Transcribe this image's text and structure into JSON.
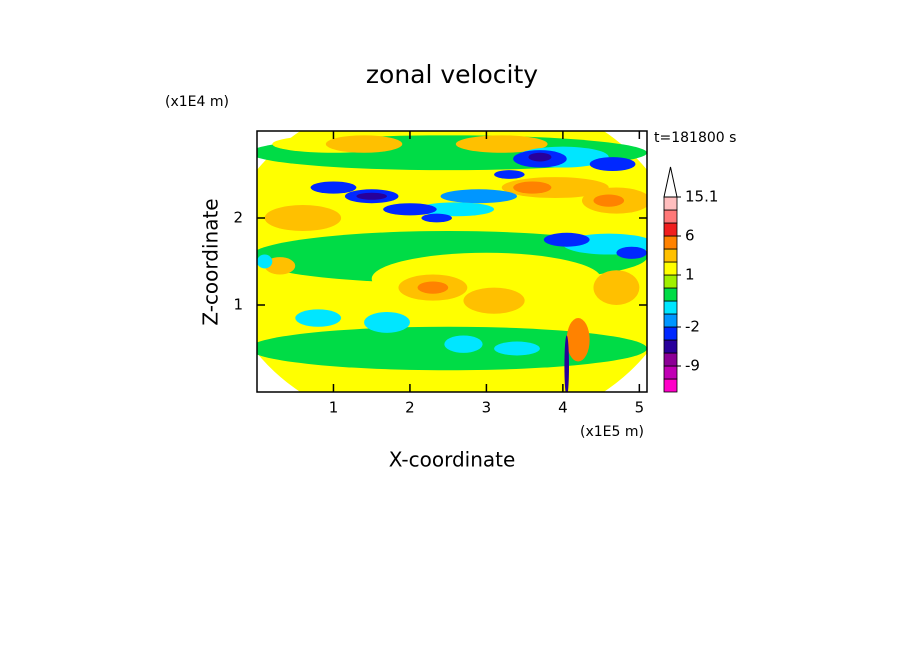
{
  "chart_data": {
    "type": "contour",
    "title": "zonal velocity",
    "x_label": "X-coordinate",
    "y_label": "Z-coordinate",
    "x_unit": "(x1E5 m)",
    "y_unit": "(x1E4 m)",
    "time_label": "t=181800 s",
    "xlim": [
      0,
      5.1
    ],
    "ylim": [
      0,
      3
    ],
    "xticks": [
      1,
      2,
      3,
      4,
      5
    ],
    "yticks": [
      1,
      2
    ],
    "levels": [
      -12,
      -9,
      -6,
      -4,
      -2,
      -1,
      0,
      0.5,
      1,
      2,
      3,
      6,
      9,
      12,
      15.1
    ],
    "colors": [
      "#ff00c8",
      "#c000b4",
      "#8c0096",
      "#28009b",
      "#0028ff",
      "#0096ff",
      "#00e6ff",
      "#00dc46",
      "#a0f000",
      "#ffff00",
      "#ffc000",
      "#ff8200",
      "#f01e1e",
      "#ff7878",
      "#ffbebe",
      "#ffffff"
    ],
    "colorbar_ticks": [
      15.1,
      6,
      1,
      -2,
      -9
    ],
    "field": [
      {
        "x": 2.55,
        "z": 1.5,
        "rx": 3,
        "rz": 2,
        "value": 1.5
      },
      {
        "x": 2.5,
        "z": 2.75,
        "rx": 2.6,
        "rz": 0.2,
        "value": 0.3
      },
      {
        "x": 2.5,
        "z": 1.55,
        "rx": 2.6,
        "rz": 0.3,
        "value": 0.3
      },
      {
        "x": 2.5,
        "z": 0.5,
        "rx": 2.6,
        "rz": 0.25,
        "value": 0.3
      },
      {
        "x": 1.0,
        "z": 2.85,
        "rx": 0.8,
        "rz": 0.1,
        "value": 1.5
      },
      {
        "x": 3.0,
        "z": 1.3,
        "rx": 1.5,
        "rz": 0.3,
        "value": 1.5
      },
      {
        "x": 0.6,
        "z": 2.0,
        "rx": 0.5,
        "rz": 0.15,
        "value": 2.5
      },
      {
        "x": 1.4,
        "z": 2.85,
        "rx": 0.5,
        "rz": 0.1,
        "value": 2.5
      },
      {
        "x": 3.2,
        "z": 2.85,
        "rx": 0.6,
        "rz": 0.1,
        "value": 2.5
      },
      {
        "x": 3.9,
        "z": 2.35,
        "rx": 0.7,
        "rz": 0.12,
        "value": 2.5
      },
      {
        "x": 4.7,
        "z": 2.2,
        "rx": 0.45,
        "rz": 0.15,
        "value": 2.5
      },
      {
        "x": 2.3,
        "z": 1.2,
        "rx": 0.45,
        "rz": 0.15,
        "value": 2.5
      },
      {
        "x": 3.1,
        "z": 1.05,
        "rx": 0.4,
        "rz": 0.15,
        "value": 2.5
      },
      {
        "x": 4.7,
        "z": 1.2,
        "rx": 0.3,
        "rz": 0.2,
        "value": 2.5
      },
      {
        "x": 0.3,
        "z": 1.45,
        "rx": 0.2,
        "rz": 0.1,
        "value": 2.5
      },
      {
        "x": 3.6,
        "z": 2.35,
        "rx": 0.25,
        "rz": 0.07,
        "value": 4
      },
      {
        "x": 4.6,
        "z": 2.2,
        "rx": 0.2,
        "rz": 0.07,
        "value": 4
      },
      {
        "x": 2.3,
        "z": 1.2,
        "rx": 0.2,
        "rz": 0.07,
        "value": 4
      },
      {
        "x": 4.2,
        "z": 0.6,
        "rx": 0.15,
        "rz": 0.25,
        "value": 4
      },
      {
        "x": 0.8,
        "z": 0.85,
        "rx": 0.3,
        "rz": 0.1,
        "value": -0.5
      },
      {
        "x": 1.7,
        "z": 0.8,
        "rx": 0.3,
        "rz": 0.12,
        "value": -0.5
      },
      {
        "x": 2.7,
        "z": 0.55,
        "rx": 0.25,
        "rz": 0.1,
        "value": -0.5
      },
      {
        "x": 3.4,
        "z": 0.5,
        "rx": 0.3,
        "rz": 0.08,
        "value": -0.5
      },
      {
        "x": 4.0,
        "z": 2.7,
        "rx": 0.6,
        "rz": 0.12,
        "value": -0.5
      },
      {
        "x": 4.6,
        "z": 1.7,
        "rx": 0.6,
        "rz": 0.12,
        "value": -0.5
      },
      {
        "x": 2.6,
        "z": 2.1,
        "rx": 0.5,
        "rz": 0.08,
        "value": -0.5
      },
      {
        "x": 0.1,
        "z": 1.5,
        "rx": 0.1,
        "rz": 0.08,
        "value": -0.5
      },
      {
        "x": 2.9,
        "z": 2.25,
        "rx": 0.5,
        "rz": 0.08,
        "value": -1.5
      },
      {
        "x": 1.0,
        "z": 2.35,
        "rx": 0.3,
        "rz": 0.07,
        "value": -3
      },
      {
        "x": 1.5,
        "z": 2.25,
        "rx": 0.35,
        "rz": 0.08,
        "value": -3
      },
      {
        "x": 2.0,
        "z": 2.1,
        "rx": 0.35,
        "rz": 0.07,
        "value": -3
      },
      {
        "x": 2.35,
        "z": 2.0,
        "rx": 0.2,
        "rz": 0.05,
        "value": -3
      },
      {
        "x": 3.7,
        "z": 2.68,
        "rx": 0.35,
        "rz": 0.1,
        "value": -3
      },
      {
        "x": 4.65,
        "z": 2.62,
        "rx": 0.3,
        "rz": 0.08,
        "value": -3
      },
      {
        "x": 4.05,
        "z": 1.75,
        "rx": 0.3,
        "rz": 0.08,
        "value": -3
      },
      {
        "x": 4.9,
        "z": 1.6,
        "rx": 0.2,
        "rz": 0.07,
        "value": -3
      },
      {
        "x": 3.3,
        "z": 2.5,
        "rx": 0.2,
        "rz": 0.05,
        "value": -3
      },
      {
        "x": 1.5,
        "z": 2.25,
        "rx": 0.2,
        "rz": 0.04,
        "value": -5
      },
      {
        "x": 3.7,
        "z": 2.7,
        "rx": 0.15,
        "rz": 0.05,
        "value": -5
      },
      {
        "x": 4.05,
        "z": 0.3,
        "rx": 0.03,
        "rz": 0.35,
        "value": -5
      }
    ]
  }
}
